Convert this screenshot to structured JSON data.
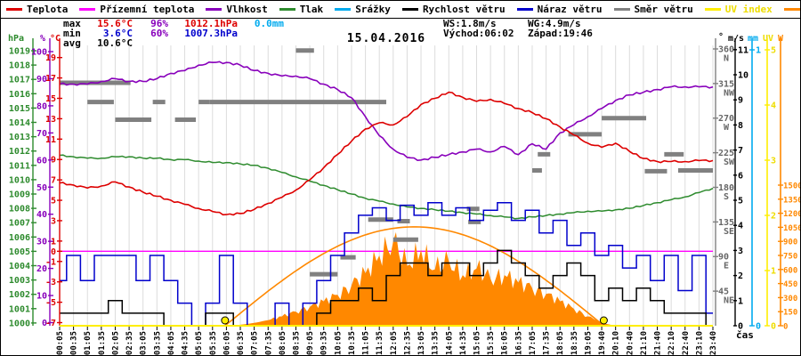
{
  "colors": {
    "temperature": "#dd0000",
    "ground_temperature": "#ff00ff",
    "humidity": "#8800bb",
    "pressure": "#2e8b2e",
    "rain": "#00aaee",
    "wind_speed": "#000000",
    "wind_gust": "#0000cc",
    "wind_direction": "#808080",
    "uv": "#ffee00",
    "solar": "#ff8800",
    "grid": "#dcdcdc",
    "min_value": "#0000cc",
    "max_value": "#dd0000"
  },
  "legend": [
    {
      "label": "Teplota",
      "color": "#dd0000"
    },
    {
      "label": "Přízemní teplota",
      "color": "#ff00ff"
    },
    {
      "label": "Vlhkost",
      "color": "#8800bb"
    },
    {
      "label": "Tlak",
      "color": "#2e8b2e"
    },
    {
      "label": "Srážky",
      "color": "#00aaee"
    },
    {
      "label": "Rychlost větru",
      "color": "#000000"
    },
    {
      "label": "Náraz větru",
      "color": "#0000cc"
    },
    {
      "label": "Směr větru",
      "color": "#808080"
    },
    {
      "label": "UV index",
      "color": "#ffee00"
    },
    {
      "label": "Solar",
      "color": "#ff8800"
    }
  ],
  "stats": {
    "max_label": "max",
    "max_temp": "15.6°C",
    "max_humidity": "96%",
    "max_pressure": "1012.1hPa",
    "max_rain": "0.0mm",
    "min_label": "min",
    "min_temp": "3.6°C",
    "min_humidity": "60%",
    "min_pressure": "1007.3hPa",
    "avg_label": "avg",
    "avg_temp": "10.6°C",
    "wind_speed": "WS:1.8m/s",
    "wind_gust": "WG:4.9m/s",
    "sunrise": "Východ:06:02",
    "sunset": "Západ:19:46"
  },
  "axis_headers": {
    "hpa": "hPa",
    "pct": "%",
    "degc": "°C",
    "deg": "°",
    "ms": "m/s",
    "mm": "mm",
    "uv": "UV",
    "w": "W"
  },
  "x_axis_label": "čas",
  "chart_data": {
    "type": "line",
    "title": "15.04.2016",
    "x_ticks": [
      "00:05",
      "00:35",
      "01:05",
      "01:35",
      "02:05",
      "02:35",
      "03:05",
      "03:35",
      "04:05",
      "04:35",
      "05:05",
      "05:35",
      "06:05",
      "06:35",
      "07:05",
      "07:35",
      "08:05",
      "08:35",
      "09:05",
      "09:35",
      "10:05",
      "10:35",
      "11:05",
      "11:35",
      "12:05",
      "12:35",
      "13:05",
      "13:35",
      "14:05",
      "14:35",
      "15:05",
      "15:35",
      "16:05",
      "16:35",
      "17:05",
      "17:35",
      "18:05",
      "18:35",
      "19:05",
      "19:40",
      "20:10",
      "20:40",
      "21:10",
      "21:40",
      "22:10",
      "22:40",
      "23:10",
      "23:40"
    ],
    "y_axes": {
      "hpa": [
        1019,
        1018,
        1017,
        1016,
        1015,
        1014,
        1013,
        1012,
        1011,
        1010,
        1009,
        1008,
        1007,
        1006,
        1005,
        1004,
        1003,
        1002,
        1001,
        1000
      ],
      "percent": [
        100,
        90,
        80,
        70,
        60,
        50,
        40,
        30,
        20,
        10,
        0
      ],
      "celsius": [
        19,
        17,
        15,
        13,
        11,
        9,
        7,
        5,
        3,
        1,
        0,
        -1,
        -3,
        -5,
        -7
      ],
      "degrees": [
        {
          "deg": 360,
          "dir": "N"
        },
        {
          "deg": 315,
          "dir": "NW"
        },
        {
          "deg": 270,
          "dir": "W"
        },
        {
          "deg": 225,
          "dir": "SW"
        },
        {
          "deg": 180,
          "dir": "S"
        },
        {
          "deg": 135,
          "dir": "SE"
        },
        {
          "deg": 90,
          "dir": "E"
        },
        {
          "deg": 45,
          "dir": "NE"
        }
      ],
      "ms": [
        11,
        10,
        9,
        8,
        7,
        6,
        5,
        4,
        3,
        2,
        1,
        0
      ],
      "mm": [
        1,
        0
      ],
      "uv": [
        5,
        4,
        3,
        2,
        1,
        0
      ],
      "watt": [
        1500,
        1350,
        1200,
        1050,
        900,
        750,
        600,
        450,
        300,
        150,
        0
      ]
    },
    "series": {
      "temperature_c": [
        6.7,
        6.5,
        6.2,
        6.4,
        6.8,
        6.3,
        5.8,
        5.4,
        5.0,
        4.6,
        4.2,
        3.9,
        3.6,
        3.7,
        4.1,
        4.7,
        5.3,
        6.0,
        7.0,
        8.2,
        9.5,
        10.8,
        12.0,
        12.6,
        12.4,
        13.2,
        14.4,
        15.0,
        15.6,
        15.1,
        14.7,
        14.9,
        14.5,
        14.0,
        13.6,
        13.0,
        12.2,
        11.4,
        10.6,
        10.2,
        10.6,
        9.8,
        9.1,
        8.8,
        8.8,
        8.8,
        8.9,
        8.9
      ],
      "humidity_pct": [
        88,
        88,
        88,
        89,
        90,
        89,
        89,
        90,
        92,
        93,
        95,
        96,
        96,
        95,
        93,
        92,
        91,
        91,
        90,
        88,
        86,
        83,
        76,
        69,
        64,
        61,
        60,
        61,
        62,
        63,
        64,
        63,
        65,
        62,
        66,
        64,
        70,
        73,
        76,
        79,
        82,
        84,
        85,
        86,
        87,
        87,
        87,
        87
      ],
      "pressure_hpa": [
        1011.7,
        1011.6,
        1011.5,
        1011.5,
        1011.6,
        1011.6,
        1011.5,
        1011.5,
        1011.4,
        1011.4,
        1011.3,
        1011.2,
        1011.2,
        1011.1,
        1011.0,
        1010.8,
        1010.5,
        1010.2,
        1009.9,
        1009.6,
        1009.3,
        1009.0,
        1008.7,
        1008.5,
        1008.3,
        1008.1,
        1008.0,
        1007.9,
        1007.8,
        1007.7,
        1007.6,
        1007.5,
        1007.4,
        1007.3,
        1007.4,
        1007.5,
        1007.6,
        1007.7,
        1007.8,
        1007.8,
        1007.9,
        1008.0,
        1008.2,
        1008.4,
        1008.6,
        1008.8,
        1009.1,
        1009.4
      ],
      "wind_speed_ms": [
        0.5,
        0.5,
        0.5,
        0.5,
        1.0,
        0.5,
        0.5,
        0.5,
        0,
        0,
        0,
        0.5,
        0.5,
        0,
        0,
        0,
        0,
        0,
        0,
        0.5,
        1.0,
        1.0,
        1.5,
        1.0,
        2.0,
        2.5,
        2.5,
        2.0,
        2.5,
        2.5,
        2.0,
        2.5,
        3.0,
        2.5,
        2.0,
        1.5,
        2.0,
        2.5,
        2.0,
        1.0,
        1.5,
        1.0,
        1.5,
        1.0,
        0.5,
        0.5,
        0.5,
        0
      ],
      "wind_gust_ms": [
        1.8,
        2.8,
        1.8,
        2.8,
        2.8,
        2.8,
        1.8,
        2.8,
        1.8,
        0.9,
        0,
        0.9,
        2.8,
        0.9,
        0,
        0,
        0.9,
        0,
        0.9,
        1.8,
        2.8,
        3.7,
        4.4,
        4.7,
        4.2,
        4.8,
        4.4,
        4.9,
        4.4,
        4.7,
        4.2,
        4.6,
        4.9,
        4.2,
        4.6,
        3.7,
        4.2,
        3.2,
        3.7,
        2.8,
        3.2,
        2.3,
        2.8,
        1.8,
        2.8,
        1.4,
        2.8,
        0.5
      ],
      "solar_w": [
        0,
        0,
        0,
        0,
        0,
        0,
        0,
        0,
        0,
        0,
        0,
        0,
        0,
        10,
        30,
        60,
        100,
        150,
        200,
        260,
        330,
        430,
        560,
        750,
        900,
        640,
        810,
        600,
        690,
        540,
        610,
        500,
        540,
        460,
        400,
        340,
        260,
        180,
        100,
        30,
        0,
        0,
        0,
        0,
        0,
        0,
        0,
        0
      ],
      "rain_mm": [
        0,
        0,
        0,
        0,
        0,
        0,
        0,
        0,
        0,
        0,
        0,
        0,
        0,
        0,
        0,
        0,
        0,
        0,
        0,
        0,
        0,
        0,
        0,
        0,
        0,
        0,
        0,
        0,
        0,
        0,
        0,
        0,
        0,
        0,
        0,
        0,
        0,
        0,
        0,
        0,
        0,
        0,
        0,
        0,
        0,
        0,
        0,
        0
      ],
      "ground_temperature_c": 0
    },
    "wind_direction_segments": [
      [
        0,
        5.1,
        316
      ],
      [
        2.0,
        3.9,
        291
      ],
      [
        4.0,
        6.6,
        268
      ],
      [
        6.7,
        7.6,
        291
      ],
      [
        8.3,
        9.8,
        268
      ],
      [
        10.0,
        10.8,
        291
      ],
      [
        10.8,
        23.5,
        291
      ],
      [
        17.0,
        18.3,
        358
      ],
      [
        18.0,
        20.0,
        67
      ],
      [
        20.2,
        21.3,
        89
      ],
      [
        22.2,
        24.0,
        138
      ],
      [
        24.3,
        25.2,
        136
      ],
      [
        24.0,
        25.8,
        112
      ],
      [
        29.4,
        30.3,
        135
      ],
      [
        29.3,
        30.2,
        152
      ],
      [
        34.0,
        34.7,
        202
      ],
      [
        34.4,
        35.3,
        223
      ],
      [
        36.6,
        39.0,
        249
      ],
      [
        39.0,
        42.2,
        270
      ],
      [
        42.1,
        43.7,
        201
      ],
      [
        43.5,
        44.9,
        223
      ],
      [
        44.5,
        47.0,
        202
      ]
    ],
    "solar_arc": {
      "start_idx": 11.9,
      "end_idx": 39.15,
      "peak_w": 1055
    },
    "sun_markers_idx": [
      11.9,
      39.15
    ],
    "axis_ranges": {
      "celsius": [
        -7,
        19.5
      ],
      "percent": [
        0,
        100
      ],
      "hpa": [
        1000,
        1019.3
      ],
      "ms": [
        0,
        11.2
      ],
      "degrees": [
        0,
        364
      ],
      "watt": [
        0,
        2990
      ],
      "uv": [
        0,
        5.1
      ],
      "mm": [
        0,
        1.02
      ]
    },
    "grid": "vertical-only"
  }
}
